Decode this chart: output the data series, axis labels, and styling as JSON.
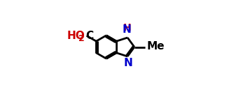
{
  "bg_color": "#ffffff",
  "bond_color": "#000000",
  "N_color": "#cc0000",
  "N_body_color": "#0000cc",
  "O_color": "#cc0000",
  "bond_lw": 2.0,
  "inner_off": 0.012,
  "font_size": 11,
  "figw": 3.24,
  "figh": 1.45,
  "dpi": 100,
  "xlim": [
    0.02,
    0.98
  ],
  "ylim": [
    0.08,
    0.95
  ]
}
